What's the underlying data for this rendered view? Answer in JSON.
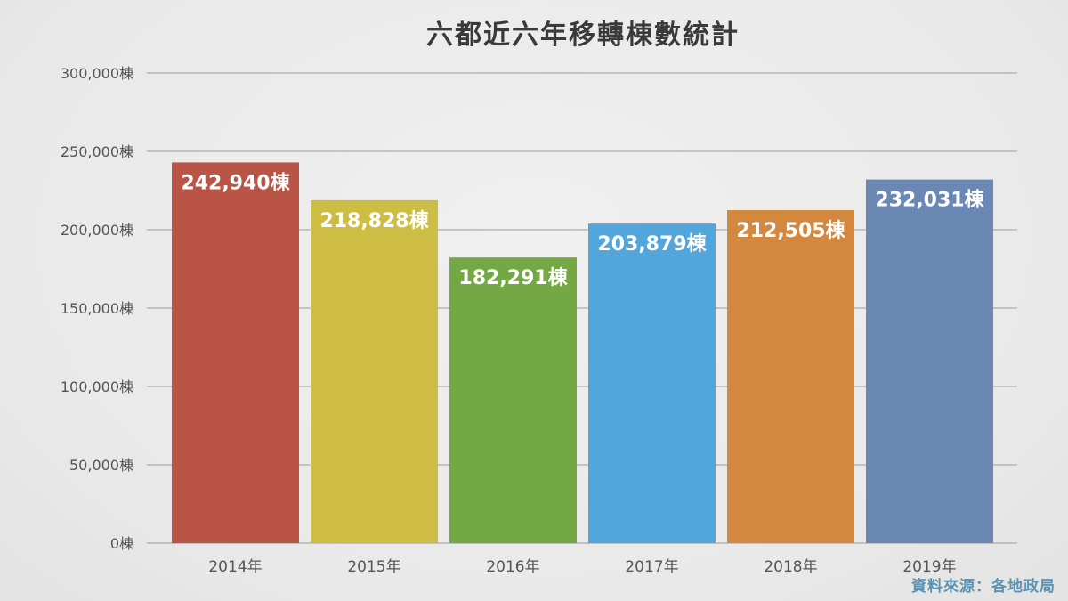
{
  "chart_data": {
    "type": "bar",
    "title": "六都近六年移轉棟數統計",
    "categories": [
      "2014年",
      "2015年",
      "2016年",
      "2017年",
      "2018年",
      "2019年"
    ],
    "values": [
      242940,
      218828,
      182291,
      203879,
      212505,
      232031
    ],
    "data_labels": [
      "242,940棟",
      "218,828棟",
      "182,291棟",
      "203,879棟",
      "212,505棟",
      "232,031棟"
    ],
    "bar_colors": [
      "#b95446",
      "#cdbd44",
      "#74a844",
      "#52a6dc",
      "#d4873e",
      "#6a88b3"
    ],
    "ylim": [
      0,
      300000
    ],
    "yticks": [
      0,
      50000,
      100000,
      150000,
      200000,
      250000,
      300000
    ],
    "ytick_labels": [
      "0棟",
      "50,000棟",
      "100,000棟",
      "150,000棟",
      "200,000棟",
      "250,000棟",
      "300,000棟"
    ],
    "grid": true,
    "legend": "none"
  },
  "source_note": "資料來源：各地政局"
}
